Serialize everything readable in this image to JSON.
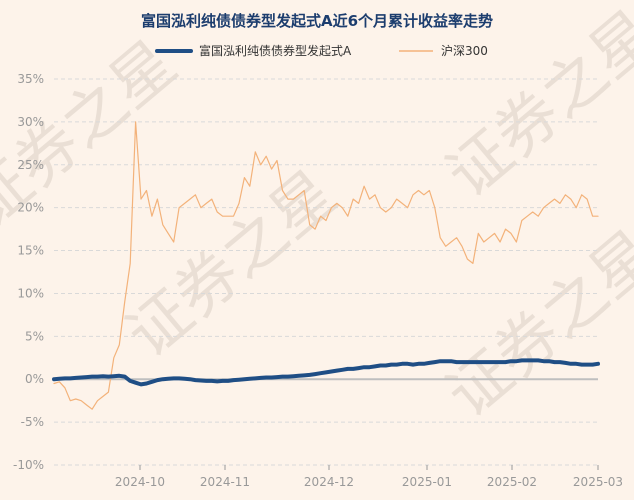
{
  "colors": {
    "background": "#fdf3ea",
    "title": "#1c3d6e",
    "fund": "#1f4e85",
    "index": "#f3b27a",
    "grid": "#d9d9d9",
    "zero_line": "#bfbfbf",
    "tick": "#999999",
    "watermark": "#eadfd5"
  },
  "watermark": [
    "证券之星",
    "证券之星",
    "证券之星",
    "证券之星"
  ],
  "chart_data": {
    "type": "line",
    "title": "富国泓利纯债债券型发起式A近6个月累计收益率走势",
    "ylabel": "",
    "xlabel": "",
    "ylim": [
      -10,
      35
    ],
    "y_ticks": [
      -10,
      -5,
      0,
      5,
      10,
      15,
      20,
      25,
      30,
      35
    ],
    "y_tick_labels": [
      "-10%",
      "-5%",
      "0%",
      "5%",
      "10%",
      "15%",
      "20%",
      "25%",
      "30%",
      "35%"
    ],
    "x_ticks": [
      "2024-10",
      "2024-11",
      "2024-12",
      "2025-01",
      "2025-02",
      "2025-03"
    ],
    "grid": true,
    "legend": "top",
    "series": [
      {
        "name": "富国泓利纯债债券型发起式A",
        "color": "#1f4e85",
        "values": [
          0,
          0.05,
          0.1,
          0.1,
          0.15,
          0.2,
          0.25,
          0.3,
          0.3,
          0.35,
          0.3,
          0.35,
          0.4,
          0.3,
          -0.2,
          -0.4,
          -0.6,
          -0.5,
          -0.3,
          -0.1,
          0,
          0.05,
          0.1,
          0.1,
          0.05,
          0,
          -0.1,
          -0.15,
          -0.2,
          -0.2,
          -0.25,
          -0.2,
          -0.2,
          -0.1,
          -0.05,
          0,
          0.05,
          0.1,
          0.15,
          0.2,
          0.2,
          0.25,
          0.3,
          0.3,
          0.35,
          0.4,
          0.45,
          0.5,
          0.6,
          0.7,
          0.8,
          0.9,
          1.0,
          1.1,
          1.2,
          1.2,
          1.3,
          1.4,
          1.4,
          1.5,
          1.6,
          1.6,
          1.7,
          1.7,
          1.8,
          1.8,
          1.7,
          1.8,
          1.8,
          1.9,
          2.0,
          2.1,
          2.1,
          2.1,
          2.0,
          2.0,
          2.0,
          2.0,
          2.0,
          2.0,
          2.0,
          2.0,
          2.0,
          2.0,
          2.1,
          2.1,
          2.2,
          2.2,
          2.2,
          2.2,
          2.1,
          2.1,
          2.0,
          2.0,
          1.9,
          1.8,
          1.8,
          1.7,
          1.7,
          1.7,
          1.8
        ]
      },
      {
        "name": "沪深300",
        "color": "#f3b27a",
        "values": [
          -0.5,
          -0.3,
          -1.0,
          -2.5,
          -2.3,
          -2.5,
          -3.0,
          -3.5,
          -2.5,
          -2.0,
          -1.5,
          2.5,
          4.0,
          9.0,
          13.5,
          30.0,
          21.0,
          22.0,
          19.0,
          21.0,
          18.0,
          17.0,
          16.0,
          20.0,
          20.5,
          21.0,
          21.5,
          20.0,
          20.5,
          21.0,
          19.5,
          19.0,
          19.0,
          19.0,
          20.5,
          23.5,
          22.5,
          26.5,
          25.0,
          26.0,
          24.5,
          25.5,
          22.0,
          21.0,
          21.0,
          21.5,
          22.0,
          18.0,
          17.5,
          19.0,
          18.5,
          20.0,
          20.5,
          20.0,
          19.0,
          21.0,
          20.5,
          22.5,
          21.0,
          21.5,
          20.0,
          19.5,
          20.0,
          21.0,
          20.5,
          20.0,
          21.5,
          22.0,
          21.5,
          22.0,
          20.0,
          16.5,
          15.5,
          16.0,
          16.5,
          15.5,
          14.0,
          13.5,
          17.0,
          16.0,
          16.5,
          17.0,
          16.0,
          17.5,
          17.0,
          16.0,
          18.5,
          19.0,
          19.5,
          19.0,
          20.0,
          20.5,
          21.0,
          20.5,
          21.5,
          21.0,
          20.0,
          21.5,
          21.0,
          19.0,
          19.0
        ]
      }
    ]
  }
}
